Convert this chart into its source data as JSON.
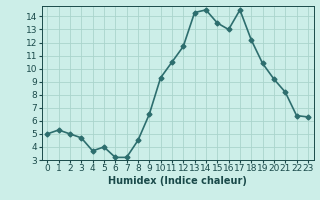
{
  "x": [
    0,
    1,
    2,
    3,
    4,
    5,
    6,
    7,
    8,
    9,
    10,
    11,
    12,
    13,
    14,
    15,
    16,
    17,
    18,
    19,
    20,
    21,
    22,
    23
  ],
  "y": [
    5.0,
    5.3,
    5.0,
    4.7,
    3.7,
    4.0,
    3.2,
    3.2,
    4.5,
    6.5,
    9.3,
    10.5,
    11.7,
    14.3,
    14.5,
    13.5,
    13.0,
    14.5,
    12.2,
    10.4,
    9.2,
    8.2,
    6.4,
    6.3
  ],
  "line_color": "#2d6e6e",
  "marker": "D",
  "marker_size": 2.5,
  "bg_color": "#cceee8",
  "grid_color": "#aad4cc",
  "xlabel": "Humidex (Indice chaleur)",
  "ylim": [
    3,
    14.8
  ],
  "xlim": [
    -0.5,
    23.5
  ],
  "yticks": [
    3,
    4,
    5,
    6,
    7,
    8,
    9,
    10,
    11,
    12,
    13,
    14
  ],
  "xticks": [
    0,
    1,
    2,
    3,
    4,
    5,
    6,
    7,
    8,
    9,
    10,
    11,
    12,
    13,
    14,
    15,
    16,
    17,
    18,
    19,
    20,
    21,
    22,
    23
  ],
  "xtick_labels": [
    "0",
    "1",
    "2",
    "3",
    "4",
    "5",
    "6",
    "7",
    "8",
    "9",
    "10",
    "11",
    "12",
    "13",
    "14",
    "15",
    "16",
    "17",
    "18",
    "19",
    "20",
    "21",
    "22",
    "23"
  ],
  "xlabel_fontsize": 7,
  "tick_fontsize": 6.5,
  "linewidth": 1.2,
  "axis_color": "#1a4a4a"
}
